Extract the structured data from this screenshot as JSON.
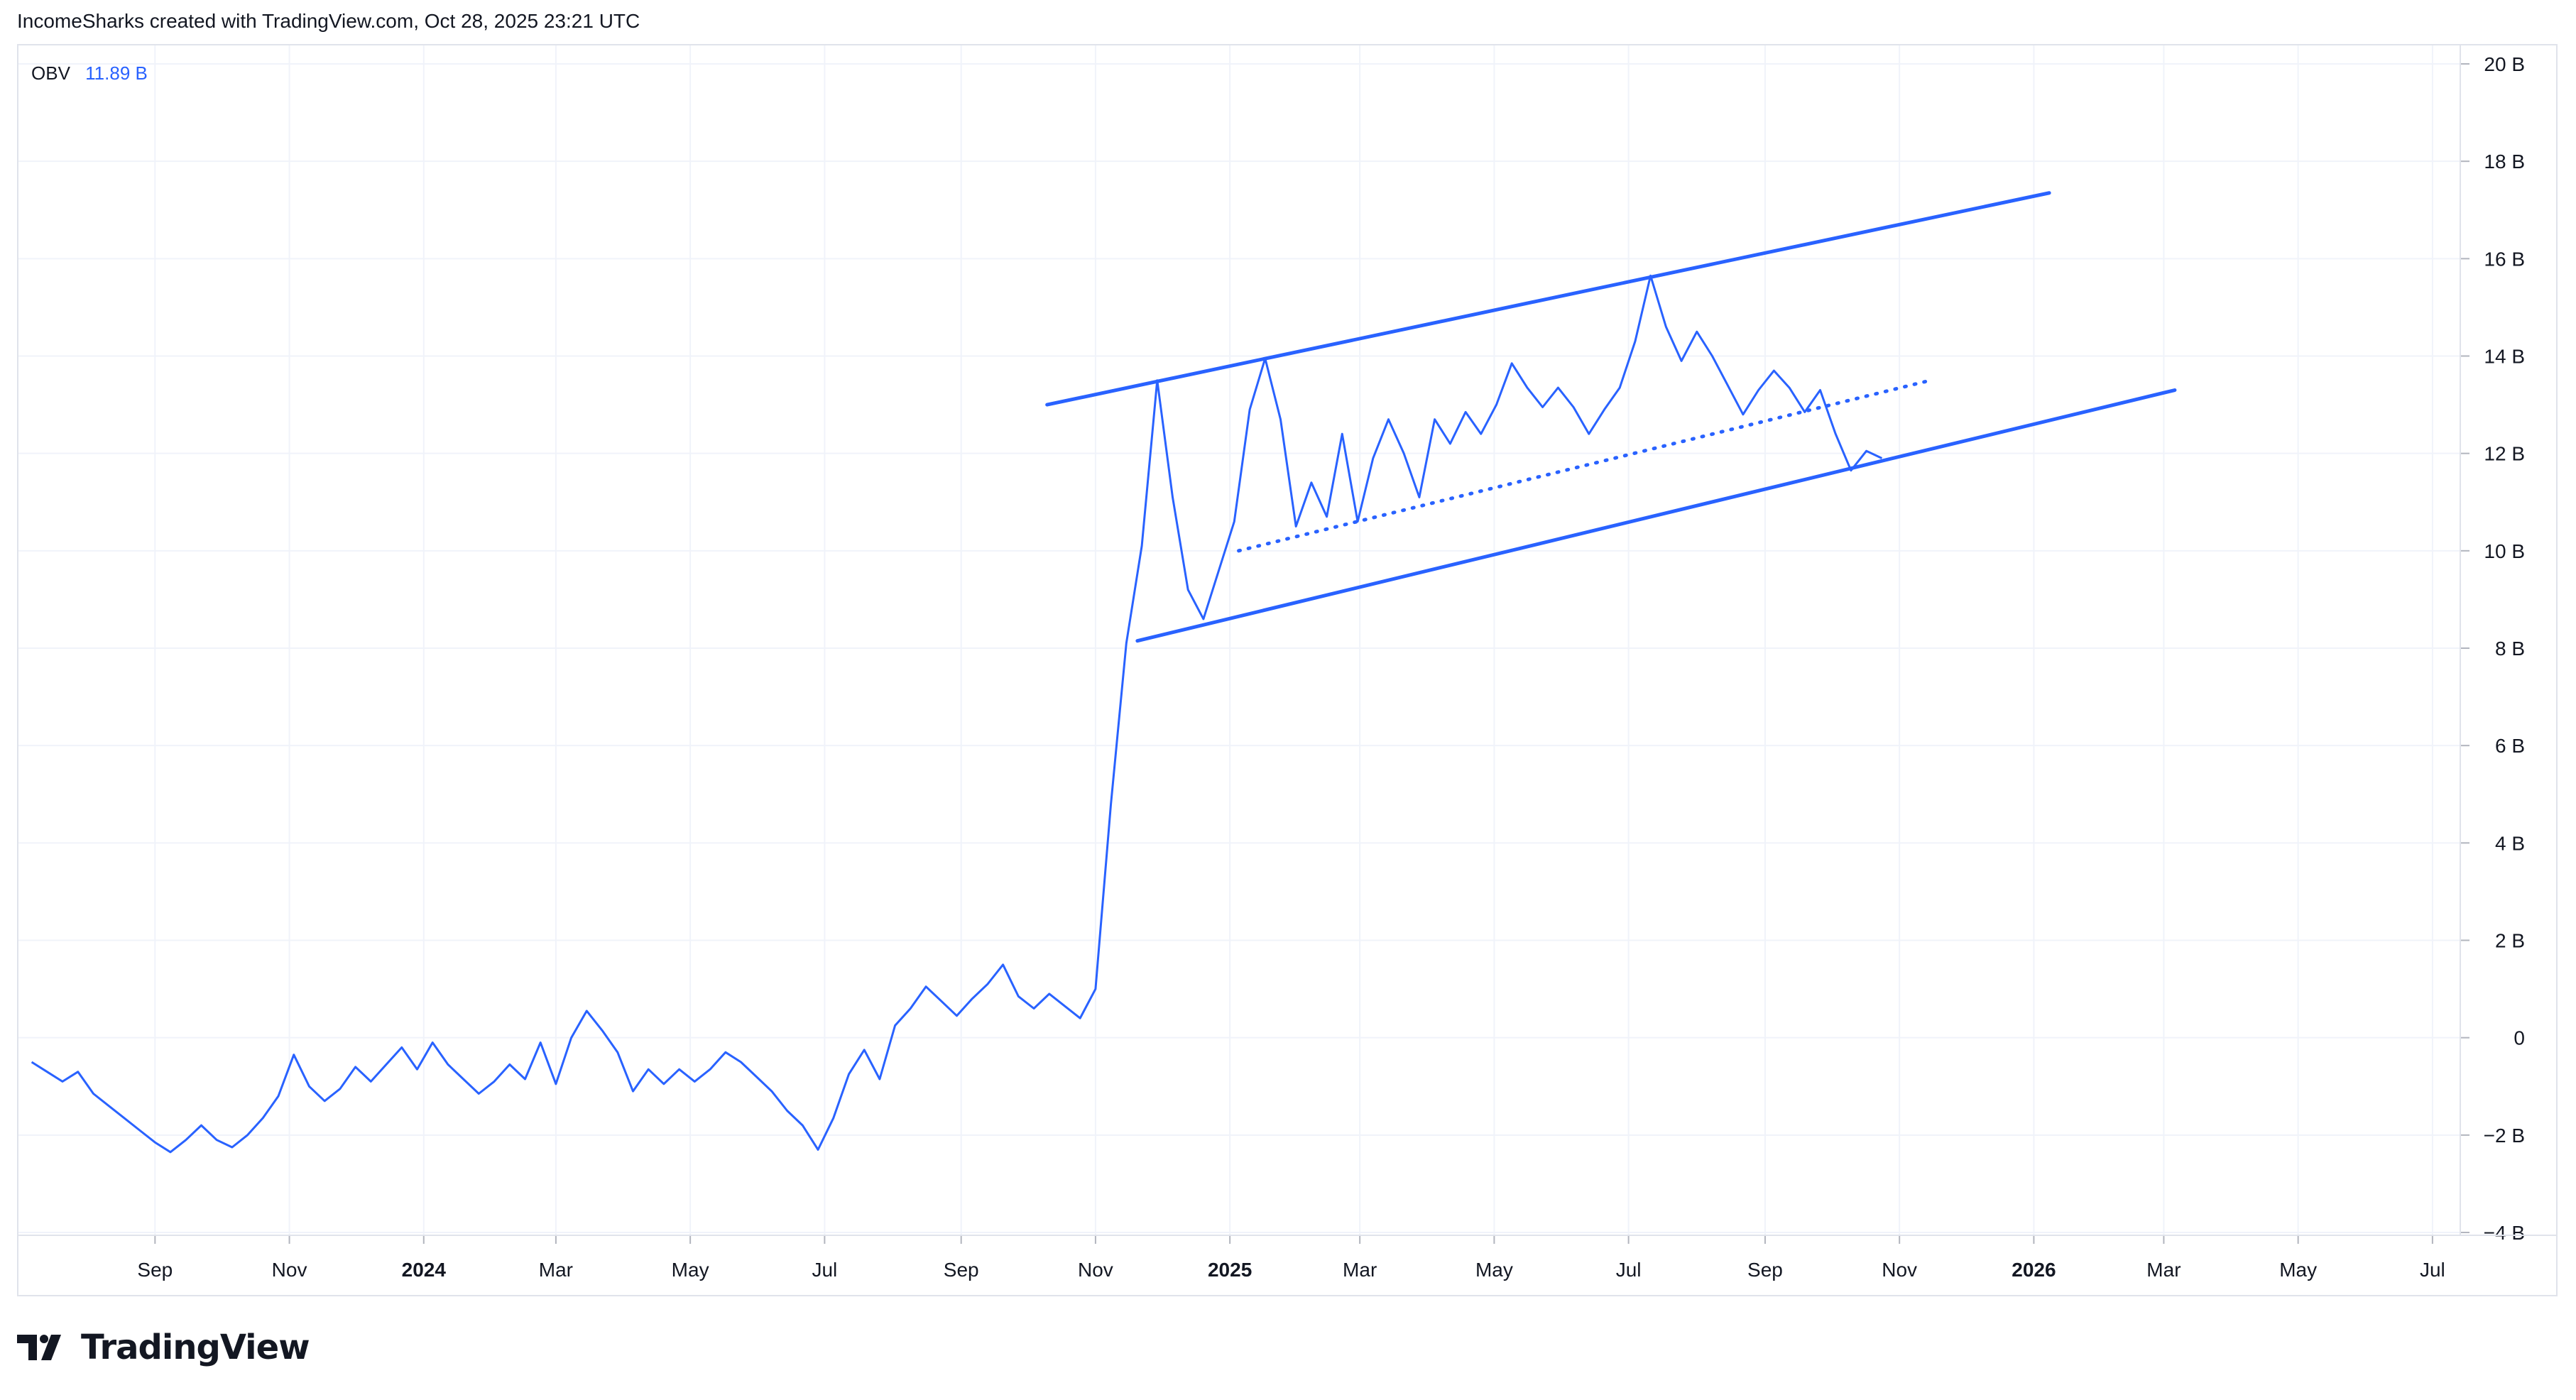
{
  "header": {
    "attribution": "IncomeSharks created with TradingView.com, Oct 28, 2025 23:21 UTC"
  },
  "legend": {
    "indicator_name": "OBV",
    "indicator_value": "11.89 B"
  },
  "footer": {
    "brand": "TradingView",
    "logo_icon": "tradingview-logo-icon"
  },
  "colors": {
    "series": "#2962ff",
    "grid": "#f0f3fa",
    "axis_text": "#131722",
    "frame": "#e0e3eb"
  },
  "chart_data": {
    "type": "line",
    "title": "",
    "xlabel": "",
    "ylabel": "",
    "y_unit": "B",
    "ylim": [
      -4,
      20
    ],
    "xlim": [
      "2023-07-01",
      "2026-07-12"
    ],
    "grid": true,
    "y_ticks": [
      {
        "value": 20,
        "label": "20 B"
      },
      {
        "value": 18,
        "label": "18 B"
      },
      {
        "value": 16,
        "label": "16 B"
      },
      {
        "value": 14,
        "label": "14 B"
      },
      {
        "value": 12,
        "label": "12 B"
      },
      {
        "value": 10,
        "label": "10 B"
      },
      {
        "value": 8,
        "label": "8 B"
      },
      {
        "value": 6,
        "label": "6 B"
      },
      {
        "value": 4,
        "label": "4 B"
      },
      {
        "value": 2,
        "label": "2 B"
      },
      {
        "value": 0,
        "label": "0"
      },
      {
        "value": -2,
        "label": "−2 B"
      },
      {
        "value": -4,
        "label": "−4 B"
      }
    ],
    "x_ticks": [
      {
        "date": "2023-09-01",
        "label": "Sep",
        "bold": false
      },
      {
        "date": "2023-11-01",
        "label": "Nov",
        "bold": false
      },
      {
        "date": "2024-01-01",
        "label": "2024",
        "bold": true
      },
      {
        "date": "2024-03-01",
        "label": "Mar",
        "bold": false
      },
      {
        "date": "2024-05-01",
        "label": "May",
        "bold": false
      },
      {
        "date": "2024-07-01",
        "label": "Jul",
        "bold": false
      },
      {
        "date": "2024-09-01",
        "label": "Sep",
        "bold": false
      },
      {
        "date": "2024-11-01",
        "label": "Nov",
        "bold": false
      },
      {
        "date": "2025-01-01",
        "label": "2025",
        "bold": true
      },
      {
        "date": "2025-03-01",
        "label": "Mar",
        "bold": false
      },
      {
        "date": "2025-05-01",
        "label": "May",
        "bold": false
      },
      {
        "date": "2025-07-01",
        "label": "Jul",
        "bold": false
      },
      {
        "date": "2025-09-01",
        "label": "Sep",
        "bold": false
      },
      {
        "date": "2025-11-01",
        "label": "Nov",
        "bold": false
      },
      {
        "date": "2026-01-01",
        "label": "2026",
        "bold": true
      },
      {
        "date": "2026-03-01",
        "label": "Mar",
        "bold": false
      },
      {
        "date": "2026-05-01",
        "label": "May",
        "bold": false
      },
      {
        "date": "2026-07-01",
        "label": "Jul",
        "bold": false
      }
    ],
    "series": [
      {
        "name": "OBV",
        "color": "#2962ff",
        "points": [
          [
            "2023-07-07",
            -0.5
          ],
          [
            "2023-07-14",
            -0.7
          ],
          [
            "2023-07-21",
            -0.9
          ],
          [
            "2023-07-28",
            -0.7
          ],
          [
            "2023-08-04",
            -1.15
          ],
          [
            "2023-08-11",
            -1.4
          ],
          [
            "2023-08-18",
            -1.65
          ],
          [
            "2023-08-25",
            -1.9
          ],
          [
            "2023-09-01",
            -2.15
          ],
          [
            "2023-09-08",
            -2.35
          ],
          [
            "2023-09-15",
            -2.1
          ],
          [
            "2023-09-22",
            -1.8
          ],
          [
            "2023-09-29",
            -2.1
          ],
          [
            "2023-10-06",
            -2.25
          ],
          [
            "2023-10-13",
            -2.0
          ],
          [
            "2023-10-20",
            -1.65
          ],
          [
            "2023-10-27",
            -1.2
          ],
          [
            "2023-11-03",
            -0.35
          ],
          [
            "2023-11-10",
            -1.0
          ],
          [
            "2023-11-17",
            -1.3
          ],
          [
            "2023-11-24",
            -1.05
          ],
          [
            "2023-12-01",
            -0.6
          ],
          [
            "2023-12-08",
            -0.9
          ],
          [
            "2023-12-15",
            -0.55
          ],
          [
            "2023-12-22",
            -0.2
          ],
          [
            "2023-12-29",
            -0.65
          ],
          [
            "2024-01-05",
            -0.1
          ],
          [
            "2024-01-12",
            -0.55
          ],
          [
            "2024-01-19",
            -0.85
          ],
          [
            "2024-01-26",
            -1.15
          ],
          [
            "2024-02-02",
            -0.9
          ],
          [
            "2024-02-09",
            -0.55
          ],
          [
            "2024-02-16",
            -0.85
          ],
          [
            "2024-02-23",
            -0.1
          ],
          [
            "2024-03-01",
            -0.95
          ],
          [
            "2024-03-08",
            0.0
          ],
          [
            "2024-03-15",
            0.55
          ],
          [
            "2024-03-22",
            0.15
          ],
          [
            "2024-03-29",
            -0.3
          ],
          [
            "2024-04-05",
            -1.1
          ],
          [
            "2024-04-12",
            -0.65
          ],
          [
            "2024-04-19",
            -0.95
          ],
          [
            "2024-04-26",
            -0.65
          ],
          [
            "2024-05-03",
            -0.9
          ],
          [
            "2024-05-10",
            -0.65
          ],
          [
            "2024-05-17",
            -0.3
          ],
          [
            "2024-05-24",
            -0.5
          ],
          [
            "2024-05-31",
            -0.8
          ],
          [
            "2024-06-07",
            -1.1
          ],
          [
            "2024-06-14",
            -1.5
          ],
          [
            "2024-06-21",
            -1.8
          ],
          [
            "2024-06-28",
            -2.3
          ],
          [
            "2024-07-05",
            -1.65
          ],
          [
            "2024-07-12",
            -0.75
          ],
          [
            "2024-07-19",
            -0.25
          ],
          [
            "2024-07-26",
            -0.85
          ],
          [
            "2024-08-02",
            0.25
          ],
          [
            "2024-08-09",
            0.6
          ],
          [
            "2024-08-16",
            1.05
          ],
          [
            "2024-08-23",
            0.75
          ],
          [
            "2024-08-30",
            0.45
          ],
          [
            "2024-09-06",
            0.8
          ],
          [
            "2024-09-13",
            1.1
          ],
          [
            "2024-09-20",
            1.5
          ],
          [
            "2024-09-27",
            0.85
          ],
          [
            "2024-10-04",
            0.6
          ],
          [
            "2024-10-11",
            0.9
          ],
          [
            "2024-10-18",
            0.65
          ],
          [
            "2024-10-25",
            0.4
          ],
          [
            "2024-11-01",
            1.0
          ],
          [
            "2024-11-08",
            4.8
          ],
          [
            "2024-11-15",
            8.1
          ],
          [
            "2024-11-22",
            10.1
          ],
          [
            "2024-11-29",
            13.5
          ],
          [
            "2024-12-06",
            11.1
          ],
          [
            "2024-12-13",
            9.2
          ],
          [
            "2024-12-20",
            8.6
          ],
          [
            "2024-12-27",
            9.6
          ],
          [
            "2025-01-03",
            10.6
          ],
          [
            "2025-01-10",
            12.9
          ],
          [
            "2025-01-17",
            13.95
          ],
          [
            "2025-01-24",
            12.7
          ],
          [
            "2025-01-31",
            10.5
          ],
          [
            "2025-02-07",
            11.4
          ],
          [
            "2025-02-14",
            10.7
          ],
          [
            "2025-02-21",
            12.4
          ],
          [
            "2025-02-28",
            10.6
          ],
          [
            "2025-03-07",
            11.9
          ],
          [
            "2025-03-14",
            12.7
          ],
          [
            "2025-03-21",
            12.0
          ],
          [
            "2025-03-28",
            11.1
          ],
          [
            "2025-04-04",
            12.7
          ],
          [
            "2025-04-11",
            12.2
          ],
          [
            "2025-04-18",
            12.85
          ],
          [
            "2025-04-25",
            12.4
          ],
          [
            "2025-05-02",
            13.0
          ],
          [
            "2025-05-09",
            13.85
          ],
          [
            "2025-05-16",
            13.35
          ],
          [
            "2025-05-23",
            12.95
          ],
          [
            "2025-05-30",
            13.35
          ],
          [
            "2025-06-06",
            12.95
          ],
          [
            "2025-06-13",
            12.4
          ],
          [
            "2025-06-20",
            12.9
          ],
          [
            "2025-06-27",
            13.35
          ],
          [
            "2025-07-04",
            14.3
          ],
          [
            "2025-07-11",
            15.65
          ],
          [
            "2025-07-18",
            14.6
          ],
          [
            "2025-07-25",
            13.9
          ],
          [
            "2025-08-01",
            14.5
          ],
          [
            "2025-08-08",
            14.0
          ],
          [
            "2025-08-15",
            13.4
          ],
          [
            "2025-08-22",
            12.8
          ],
          [
            "2025-08-29",
            13.3
          ],
          [
            "2025-09-05",
            13.7
          ],
          [
            "2025-09-12",
            13.35
          ],
          [
            "2025-09-19",
            12.85
          ],
          [
            "2025-09-26",
            13.3
          ],
          [
            "2025-10-03",
            12.4
          ],
          [
            "2025-10-10",
            11.65
          ],
          [
            "2025-10-17",
            12.05
          ],
          [
            "2025-10-24",
            11.9
          ]
        ]
      }
    ],
    "drawings": [
      {
        "name": "channel-upper-line",
        "style": "solid",
        "from": [
          "2024-10-10",
          13.0
        ],
        "to": [
          "2026-01-08",
          17.35
        ]
      },
      {
        "name": "channel-lower-line",
        "style": "solid",
        "from": [
          "2024-11-20",
          8.15
        ],
        "to": [
          "2026-03-06",
          13.3
        ]
      },
      {
        "name": "dotted-trend-line",
        "style": "dotted",
        "from": [
          "2025-01-05",
          10.0
        ],
        "to": [
          "2025-11-15",
          13.5
        ]
      }
    ]
  }
}
